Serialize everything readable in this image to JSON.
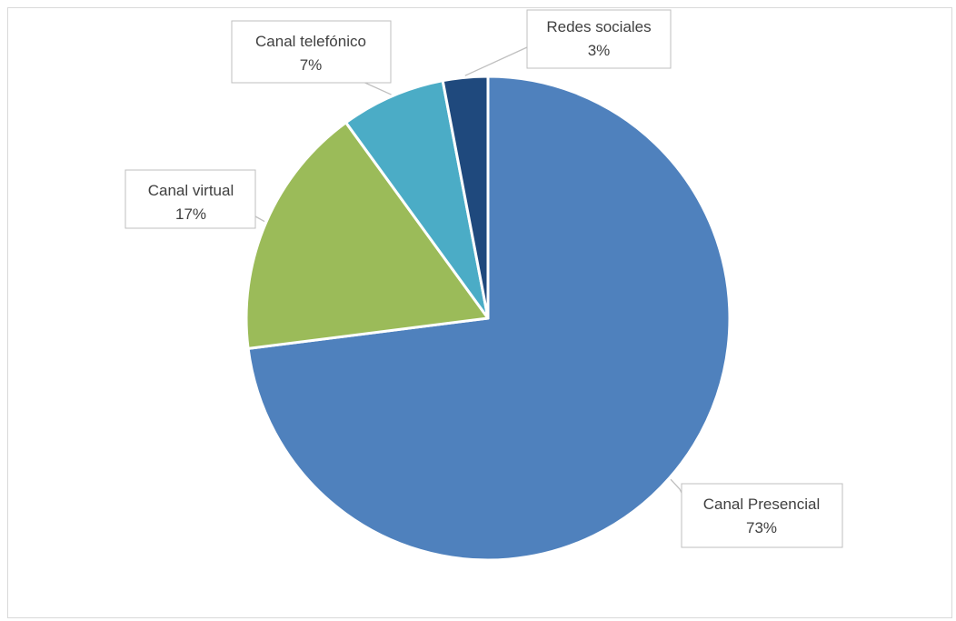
{
  "chart_data": {
    "type": "pie",
    "title": "",
    "categories": [
      "Canal Presencial",
      "Canal virtual",
      "Canal telefónico",
      "Redes sociales"
    ],
    "values": [
      73,
      17,
      7,
      3
    ],
    "labels": [
      {
        "name": "Canal Presencial",
        "percent": "73%"
      },
      {
        "name": "Canal virtual",
        "percent": "17%"
      },
      {
        "name": "Canal telefónico",
        "percent": "7%"
      },
      {
        "name": "Redes sociales",
        "percent": "3%"
      }
    ],
    "colors": [
      "#4F81BD",
      "#9BBB59",
      "#4BACC6",
      "#1F497D"
    ],
    "start_angle_deg": 0,
    "direction": "clockwise",
    "legend": "none",
    "data_labels": "callouts"
  }
}
